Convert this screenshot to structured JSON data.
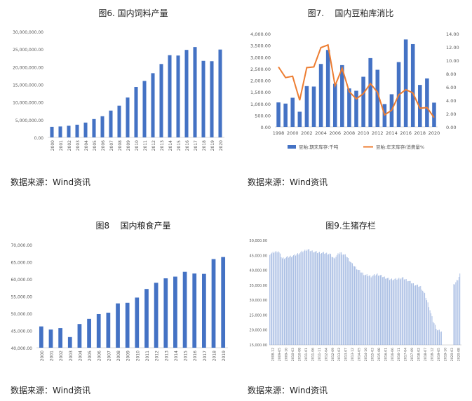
{
  "charts": {
    "c1": {
      "title": "图6. 国内饲料产量",
      "source": "数据来源：Wind资讯"
    },
    "c2": {
      "title": "图7.    国内豆粕库消比",
      "source": "数据来源：Wind资讯"
    },
    "c3": {
      "title": "图8    国内粮食产量",
      "source": "数据来源：Wind资讯"
    },
    "c4": {
      "title": "图9.生猪存栏",
      "source": "数据来源：Wind资讯"
    }
  },
  "chart_data": [
    {
      "type": "bar",
      "title": "图6. 国内饲料产量",
      "categories": [
        "2000",
        "2001",
        "2002",
        "2003",
        "2004",
        "2005",
        "2006",
        "2007",
        "2008",
        "2009",
        "2010",
        "2011",
        "2012",
        "2013",
        "2014",
        "2015",
        "2016",
        "2017",
        "2018",
        "2019",
        "2020"
      ],
      "values": [
        3000000,
        3100000,
        3300000,
        3600000,
        4200000,
        5200000,
        6000000,
        7600000,
        9000000,
        11300000,
        14300000,
        16000000,
        18200000,
        20800000,
        23300000,
        23200000,
        24800000,
        25600000,
        21700000,
        21600000,
        24900000
      ],
      "ylim": [
        0,
        30000000
      ],
      "yticks": [
        "0.00",
        "5,000,000.00",
        "10,000,000.00",
        "15,000,000.00",
        "20,000,000.00",
        "25,000,000.00",
        "30,000,000.00"
      ],
      "bar_color": "#4472C4"
    },
    {
      "type": "bar+line",
      "title": "图7.    国内豆粕库消比",
      "x": [
        1998,
        1999,
        2000,
        2001,
        2002,
        2003,
        2004,
        2005,
        2006,
        2007,
        2008,
        2009,
        2010,
        2011,
        2012,
        2013,
        2014,
        2015,
        2016,
        2017,
        2018,
        2019,
        2020
      ],
      "xticks": [
        "1998",
        "2000",
        "2002",
        "2004",
        "2006",
        "2008",
        "2010",
        "2012",
        "2014",
        "2016",
        "2018",
        "2020"
      ],
      "series": [
        {
          "name": "豆粕:期末库存:千吨",
          "type": "bar",
          "axis": "left",
          "color": "#4472C4",
          "values": [
            1050,
            1000,
            1250,
            650,
            1750,
            1730,
            2700,
            3300,
            1850,
            2650,
            1650,
            1550,
            2150,
            2950,
            2450,
            980,
            1400,
            2780,
            3750,
            3550,
            1800,
            2080,
            1040
          ]
        },
        {
          "name": "豆粕:年末库存/消费量%",
          "type": "line",
          "axis": "right",
          "color": "#ED7D31",
          "values": [
            9.0,
            7.4,
            7.6,
            4.0,
            8.9,
            9.0,
            11.9,
            12.3,
            6.2,
            8.8,
            5.3,
            4.2,
            5.0,
            6.5,
            5.2,
            1.8,
            2.5,
            4.8,
            5.6,
            5.1,
            2.8,
            2.9,
            1.4
          ]
        }
      ],
      "ylim_left": [
        0,
        4000
      ],
      "yticks_left": [
        "0.00",
        "500.00",
        "1,000.00",
        "1,500.00",
        "2,000.00",
        "2,500.00",
        "3,000.00",
        "3,500.00",
        "4,000.00"
      ],
      "ylim_right": [
        0,
        14
      ],
      "yticks_right": [
        "0.00",
        "2.00",
        "4.00",
        "6.00",
        "8.00",
        "10.00",
        "12.00",
        "14.00"
      ],
      "legend": "bottom"
    },
    {
      "type": "bar",
      "title": "图8    国内粮食产量",
      "categories": [
        "2000",
        "2001",
        "2002",
        "2003",
        "2004",
        "2005",
        "2006",
        "2007",
        "2008",
        "2009",
        "2010",
        "2011",
        "2012",
        "2013",
        "2014",
        "2015",
        "2016",
        "2017",
        "2018",
        "2019"
      ],
      "values": [
        46200,
        45300,
        45700,
        43100,
        46900,
        48400,
        49800,
        50200,
        52900,
        53100,
        54600,
        57100,
        58900,
        60200,
        60700,
        62100,
        61600,
        61500,
        65800,
        66400
      ],
      "ylim": [
        40000,
        70000
      ],
      "yticks": [
        "40,000.00",
        "45,000.00",
        "50,000.00",
        "55,000.00",
        "60,000.00",
        "65,000.00",
        "70,000.00"
      ],
      "bar_color": "#4472C4"
    },
    {
      "type": "bar",
      "title": "图9.生猪存栏",
      "categories": [
        "2008-12",
        "2009-05",
        "2009-10",
        "2010-03",
        "2010-08",
        "2011-01",
        "2011-06",
        "2011-11",
        "2012-04",
        "2012-09",
        "2013-02",
        "2013-07",
        "2013-12",
        "2014-05",
        "2014-10",
        "2015-03",
        "2015-08",
        "2016-01",
        "2016-06",
        "2016-11",
        "2017-04",
        "2017-09",
        "2018-02",
        "2018-07",
        "2018-12",
        "2019-05",
        "2019-10",
        "2020-03",
        "2020-08"
      ],
      "anchors": [
        [
          0,
          45500
        ],
        [
          8,
          46500
        ],
        [
          12,
          44000
        ],
        [
          18,
          44500
        ],
        [
          24,
          45000
        ],
        [
          30,
          46000
        ],
        [
          36,
          47000
        ],
        [
          40,
          46500
        ],
        [
          46,
          46000
        ],
        [
          52,
          45800
        ],
        [
          58,
          45500
        ],
        [
          62,
          44000
        ],
        [
          68,
          46000
        ],
        [
          74,
          44800
        ],
        [
          80,
          42000
        ],
        [
          86,
          40000
        ],
        [
          92,
          38500
        ],
        [
          98,
          38000
        ],
        [
          104,
          38700
        ],
        [
          110,
          37800
        ],
        [
          116,
          37000
        ],
        [
          122,
          37000
        ],
        [
          128,
          37500
        ],
        [
          134,
          36500
        ],
        [
          140,
          35200
        ],
        [
          146,
          34500
        ],
        [
          150,
          32000
        ],
        [
          154,
          28000
        ],
        [
          158,
          23000
        ],
        [
          162,
          20000
        ],
        [
          166,
          19500
        ]
      ],
      "gap_after_index": 166,
      "tail": [
        [
          178,
          35000
        ],
        [
          182,
          37000
        ],
        [
          184,
          38800
        ]
      ],
      "ylim": [
        15000,
        50000
      ],
      "yticks": [
        "15,000.00",
        "20,000.00",
        "25,000.00",
        "30,000.00",
        "35,000.00",
        "40,000.00",
        "45,000.00",
        "50,000.00"
      ],
      "bar_color": "#8EA9DB"
    }
  ]
}
